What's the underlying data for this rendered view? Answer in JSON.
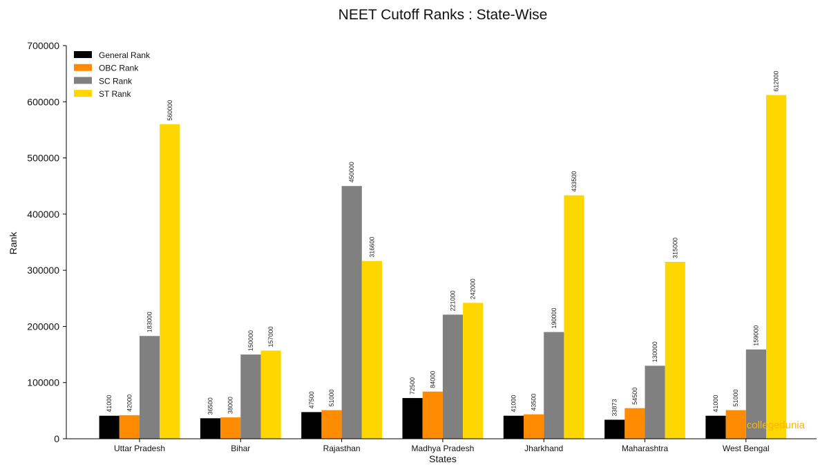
{
  "chart_data": {
    "type": "bar",
    "title": "NEET Cutoff Ranks : State-Wise",
    "xlabel": "States",
    "ylabel": "Rank",
    "ylim": [
      0,
      700000
    ],
    "yticks": [
      "0",
      "100000",
      "200000",
      "300000",
      "400000",
      "500000",
      "600000",
      "700000"
    ],
    "categories": [
      "Uttar Pradesh",
      "Bihar",
      "Rajasthan",
      "Madhya Pradesh",
      "Jharkhand",
      "Maharashtra",
      "West Bengal"
    ],
    "series": [
      {
        "name": "General Rank",
        "color": "#000000",
        "values": [
          41000,
          36500,
          47500,
          72500,
          41000,
          33873,
          41000
        ]
      },
      {
        "name": "OBC Rank",
        "color": "#ff8c00",
        "values": [
          42000,
          38000,
          51000,
          84000,
          43500,
          54500,
          51000
        ]
      },
      {
        "name": "SC Rank",
        "color": "#808080",
        "values": [
          183000,
          150000,
          450000,
          221000,
          190000,
          130000,
          159000
        ]
      },
      {
        "name": "ST Rank",
        "color": "#ffd700",
        "values": [
          560000,
          157000,
          316600,
          242000,
          433500,
          315000,
          612000
        ]
      }
    ],
    "legend": "top-left",
    "grid": false
  },
  "watermark": {
    "text": "collegedunia",
    "color": "#ffb400"
  }
}
